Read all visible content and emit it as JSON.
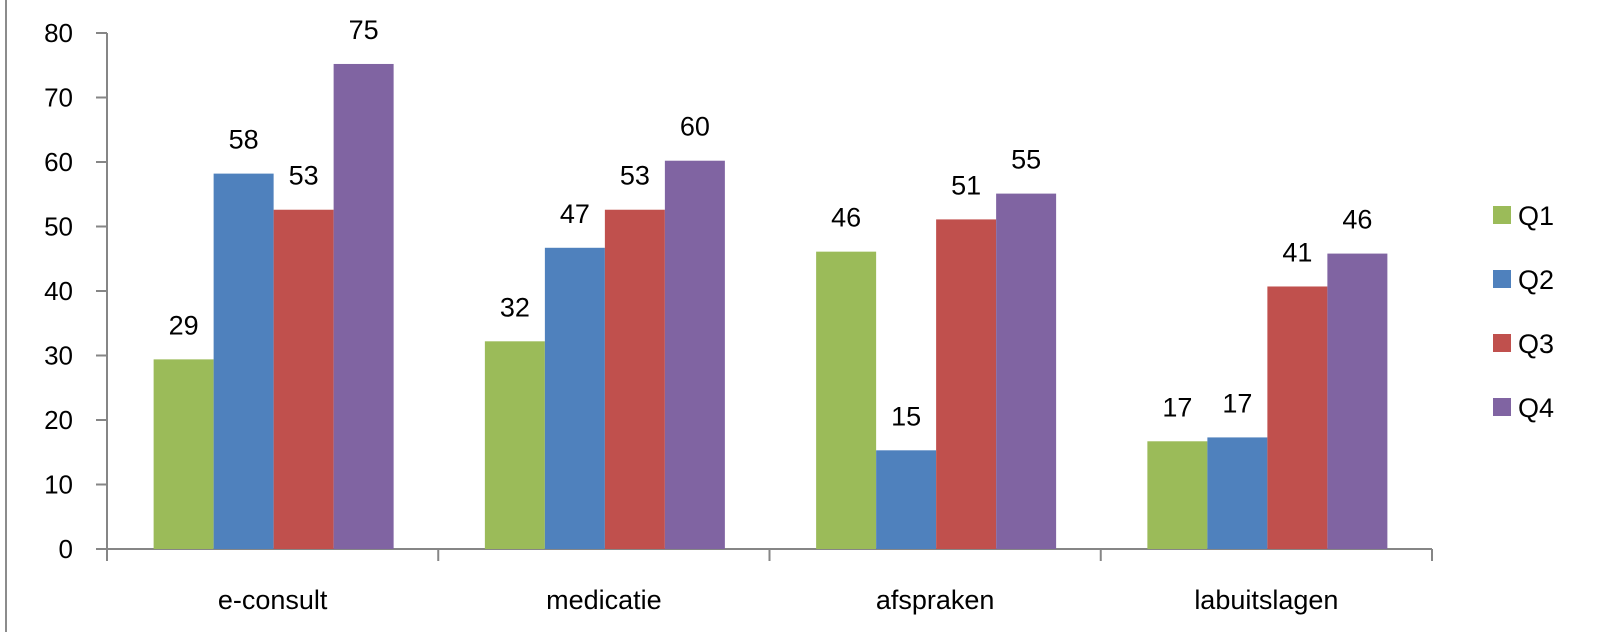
{
  "chart_data": {
    "type": "bar",
    "title": "",
    "xlabel": "",
    "ylabel": "",
    "categories": [
      "e-consult",
      "medicatie",
      "afspraken",
      "labuitslagen"
    ],
    "series": [
      {
        "name": "Q1",
        "color": "#9BBB59",
        "values": [
          29,
          32,
          46,
          17
        ]
      },
      {
        "name": "Q2",
        "color": "#4F81BD",
        "values": [
          58,
          47,
          15,
          17
        ]
      },
      {
        "name": "Q3",
        "color": "#C0504D",
        "values": [
          53,
          53,
          51,
          41
        ]
      },
      {
        "name": "Q4",
        "color": "#8064A2",
        "values": [
          75,
          60,
          55,
          46
        ]
      }
    ],
    "plotted_values": [
      [
        29.4,
        32.2,
        46.1,
        16.7
      ],
      [
        58.2,
        46.7,
        15.3,
        17.3
      ],
      [
        52.6,
        52.6,
        51.1,
        40.7
      ],
      [
        75.2,
        60.2,
        55.1,
        45.8
      ]
    ],
    "ylim": [
      0,
      80
    ],
    "yticks": [
      "0",
      "10",
      "20",
      "30",
      "40",
      "50",
      "60",
      "70",
      "80"
    ],
    "grid": false,
    "legend": "right",
    "data_labels": true
  }
}
